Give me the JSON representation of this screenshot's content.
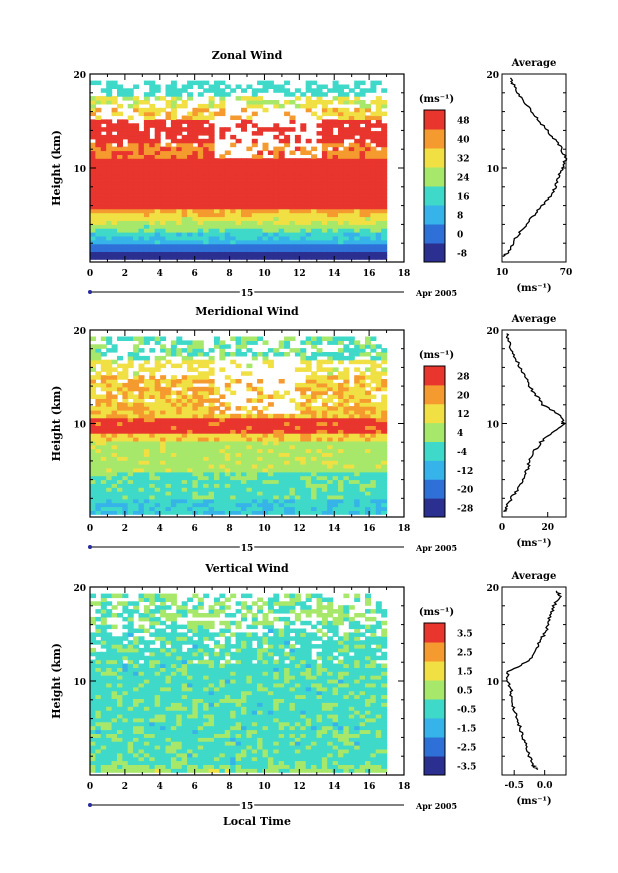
{
  "chart_data": [
    {
      "type": "heatmap",
      "title": "Zonal Wind",
      "xlabel": "",
      "ylabel": "Height (km)",
      "xlim": [
        0,
        18
      ],
      "ylim": [
        0,
        20
      ],
      "x_ticks": [
        "0",
        "2",
        "4",
        "6",
        "8",
        "10",
        "12",
        "14",
        "16",
        "18"
      ],
      "y_ticks": [
        "10",
        "20"
      ],
      "date_axis": {
        "day": "15",
        "label": "Apr 2005"
      },
      "colorbar": {
        "unit": "(ms⁻¹)",
        "ticks": [
          "48",
          "40",
          "32",
          "24",
          "16",
          "8",
          "0",
          "-8"
        ],
        "levels": [
          -8,
          0,
          8,
          16,
          24,
          32,
          40,
          48
        ]
      },
      "profile": {
        "title": "Average",
        "xlabel": "(ms⁻¹)",
        "x_ticks": [
          "10",
          "70"
        ],
        "xlim": [
          10,
          70
        ],
        "heights": [
          0.6,
          1,
          2,
          3,
          4,
          5,
          6,
          7,
          8,
          9,
          10,
          11,
          12,
          13,
          14,
          15,
          16,
          17,
          18,
          19,
          19.6
        ],
        "values": [
          12,
          15,
          20,
          26,
          33,
          40,
          48,
          55,
          60,
          63,
          67,
          70,
          66,
          60,
          52,
          45,
          38,
          30,
          25,
          20,
          18
        ]
      }
    },
    {
      "type": "heatmap",
      "title": "Meridional Wind",
      "xlabel": "",
      "ylabel": "Height (km)",
      "xlim": [
        0,
        18
      ],
      "ylim": [
        0,
        20
      ],
      "x_ticks": [
        "0",
        "2",
        "4",
        "6",
        "8",
        "10",
        "12",
        "14",
        "16",
        "18"
      ],
      "y_ticks": [
        "10",
        "20"
      ],
      "date_axis": {
        "day": "15",
        "label": "Apr 2005"
      },
      "colorbar": {
        "unit": "(ms⁻¹)",
        "ticks": [
          "28",
          "20",
          "12",
          "4",
          "-4",
          "-12",
          "-20",
          "-28"
        ],
        "levels": [
          -28,
          -20,
          -12,
          -4,
          4,
          12,
          20,
          28
        ]
      },
      "profile": {
        "title": "Average",
        "xlabel": "(ms⁻¹)",
        "x_ticks": [
          "0",
          "20"
        ],
        "xlim": [
          0,
          28
        ],
        "heights": [
          0.6,
          1,
          2,
          3,
          4,
          5,
          6,
          7,
          8,
          9,
          10,
          11,
          12,
          13,
          14,
          15,
          16,
          17,
          18,
          19,
          19.6
        ],
        "values": [
          1,
          2,
          4,
          7,
          9,
          11,
          12,
          14,
          17,
          22,
          27,
          25,
          18,
          15,
          12,
          10,
          8,
          6,
          4,
          3,
          2
        ]
      }
    },
    {
      "type": "heatmap",
      "title": "Vertical Wind",
      "xlabel": "Local Time",
      "ylabel": "Height (km)",
      "xlim": [
        0,
        18
      ],
      "ylim": [
        0,
        20
      ],
      "x_ticks": [
        "0",
        "2",
        "4",
        "6",
        "8",
        "10",
        "12",
        "14",
        "16",
        "18"
      ],
      "y_ticks": [
        "10",
        "20"
      ],
      "date_axis": {
        "day": "15",
        "label": "Apr 2005"
      },
      "colorbar": {
        "unit": "(ms⁻¹)",
        "ticks": [
          "3.5",
          "2.5",
          "1.5",
          "0.5",
          "-0.5",
          "-1.5",
          "-2.5",
          "-3.5"
        ],
        "levels": [
          -3.5,
          -2.5,
          -1.5,
          -0.5,
          0.5,
          1.5,
          2.5,
          3.5
        ]
      },
      "profile": {
        "title": "Average",
        "xlabel": "(ms⁻¹)",
        "x_ticks": [
          "-0.5",
          "0.0"
        ],
        "xlim": [
          -0.7,
          0.35
        ],
        "heights": [
          0.6,
          1,
          2,
          3,
          4,
          5,
          6,
          7,
          8,
          9,
          10,
          11,
          12,
          13,
          14,
          15,
          16,
          17,
          18,
          19,
          19.6
        ],
        "values": [
          -0.1,
          -0.2,
          -0.25,
          -0.3,
          -0.35,
          -0.4,
          -0.45,
          -0.5,
          -0.55,
          -0.55,
          -0.6,
          -0.6,
          -0.3,
          -0.15,
          -0.1,
          0.0,
          0.05,
          0.1,
          0.15,
          0.25,
          0.2
        ]
      }
    }
  ]
}
